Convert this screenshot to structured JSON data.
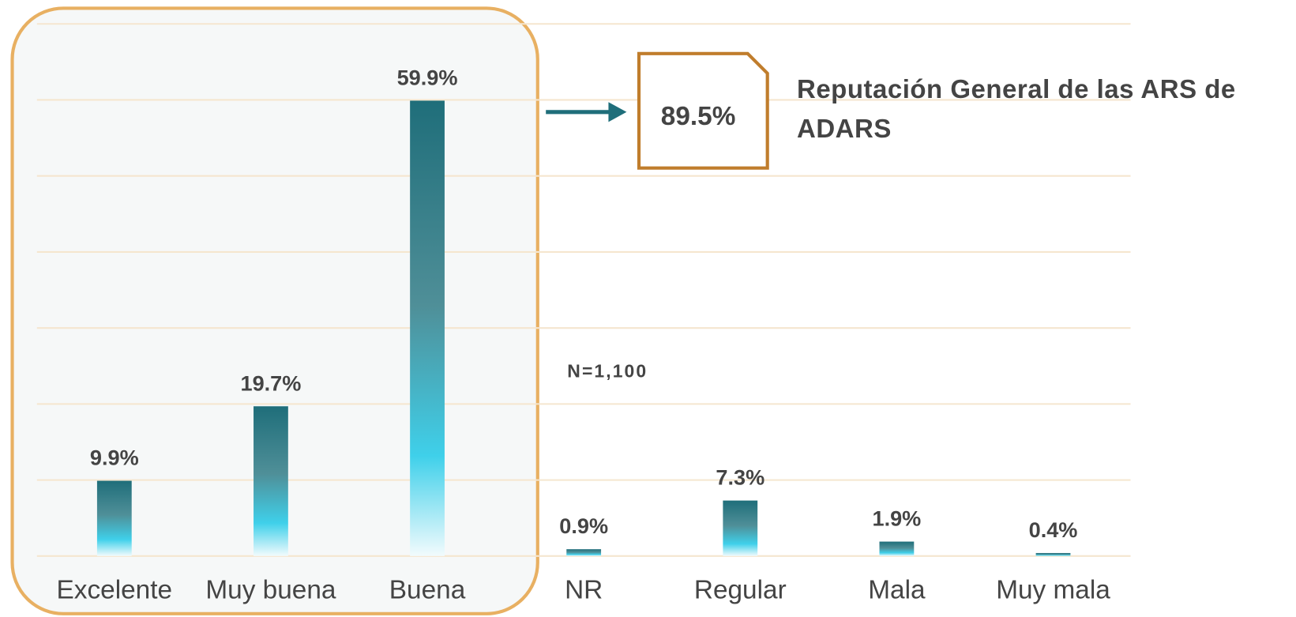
{
  "chart_data": {
    "type": "bar",
    "title": "Reputación General de las ARS de ADARS",
    "annotations": [
      "89.5%",
      "N=1,100"
    ],
    "categories": [
      "Excelente",
      "Muy buena",
      "Buena",
      "NR",
      "Regular",
      "Mala",
      "Muy mala"
    ],
    "values": [
      9.9,
      19.7,
      59.9,
      0.9,
      7.3,
      1.9,
      0.4
    ],
    "value_labels": [
      "9.9%",
      "19.7%",
      "59.9%",
      "0.9%",
      "7.3%",
      "1.9%",
      "0.4%"
    ],
    "color": "#1f6e7a",
    "ylim": [
      0,
      70
    ],
    "yticks": [
      0,
      10,
      20,
      30,
      40,
      50,
      60,
      70
    ],
    "grid": true
  }
}
